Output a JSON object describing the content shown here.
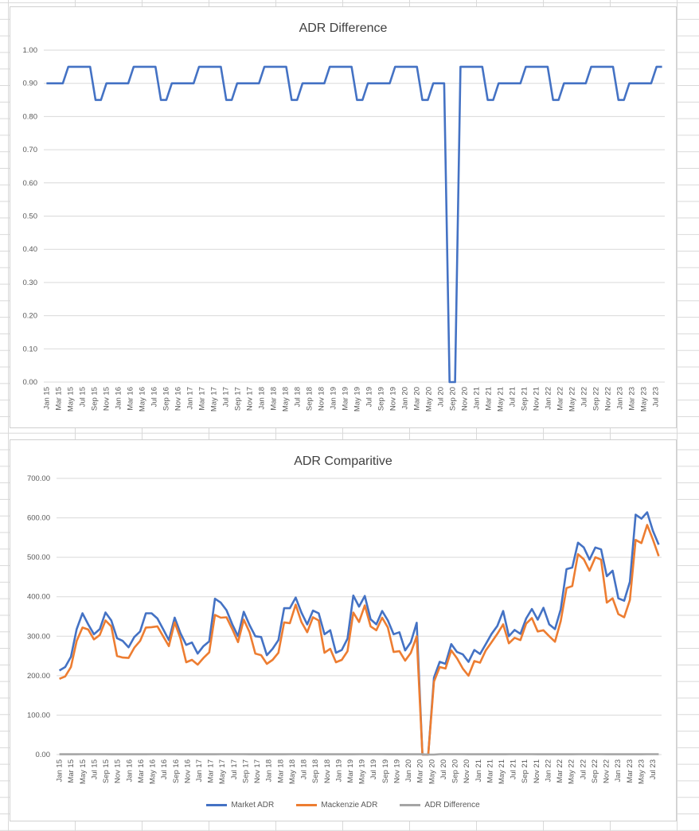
{
  "chart_data": [
    {
      "type": "line",
      "title": "ADR Difference",
      "xlabel": "",
      "ylabel": "",
      "ylim": [
        0,
        1
      ],
      "y_ticks": [
        "0.00",
        "0.10",
        "0.20",
        "0.30",
        "0.40",
        "0.50",
        "0.60",
        "0.70",
        "0.80",
        "0.90",
        "1.00"
      ],
      "grid": true,
      "x_tick_labels": [
        "Jan 15",
        "Mar 15",
        "May 15",
        "Jul 15",
        "Sep 15",
        "Nov 15",
        "Jan 16",
        "Mar 16",
        "May 16",
        "Jul 16",
        "Sep 16",
        "Nov 16",
        "Jan 17",
        "Mar 17",
        "May 17",
        "Jul 17",
        "Sep 17",
        "Nov 17",
        "Jan 18",
        "Mar 18",
        "May 18",
        "Jul 18",
        "Sep 18",
        "Nov 18",
        "Jan 19",
        "Mar 19",
        "May 19",
        "Jul 19",
        "Sep 19",
        "Nov 19",
        "Jan 20",
        "Mar 20",
        "May 20",
        "Jul 20",
        "Sep 20",
        "Nov 20",
        "Jan 21",
        "Mar 21",
        "May 21",
        "Jul 21",
        "Sep 21",
        "Nov 21",
        "Jan 22",
        "Mar 22",
        "May 22",
        "Jul 22",
        "Sep 22",
        "Nov 22",
        "Jan 23",
        "Mar 23",
        "May 23",
        "Jul 23"
      ],
      "series": [
        {
          "color": "#4472c4",
          "values": [
            0.9,
            0.9,
            0.9,
            0.9,
            0.95,
            0.95,
            0.95,
            0.95,
            0.95,
            0.85,
            0.85,
            0.9,
            0.9,
            0.9,
            0.9,
            0.9,
            0.95,
            0.95,
            0.95,
            0.95,
            0.95,
            0.85,
            0.85,
            0.9,
            0.9,
            0.9,
            0.9,
            0.9,
            0.95,
            0.95,
            0.95,
            0.95,
            0.95,
            0.85,
            0.85,
            0.9,
            0.9,
            0.9,
            0.9,
            0.9,
            0.95,
            0.95,
            0.95,
            0.95,
            0.95,
            0.85,
            0.85,
            0.9,
            0.9,
            0.9,
            0.9,
            0.9,
            0.95,
            0.95,
            0.95,
            0.95,
            0.95,
            0.85,
            0.85,
            0.9,
            0.9,
            0.9,
            0.9,
            0.9,
            0.95,
            0.95,
            0.95,
            0.95,
            0.95,
            0.85,
            0.85,
            0.9,
            0.9,
            0.9,
            0.0,
            0.0,
            0.95,
            0.95,
            0.95,
            0.95,
            0.95,
            0.85,
            0.85,
            0.9,
            0.9,
            0.9,
            0.9,
            0.9,
            0.95,
            0.95,
            0.95,
            0.95,
            0.95,
            0.85,
            0.85,
            0.9,
            0.9,
            0.9,
            0.9,
            0.9,
            0.95,
            0.95,
            0.95,
            0.95,
            0.95,
            0.85,
            0.85,
            0.9,
            0.9,
            0.9,
            0.9,
            0.9,
            0.95,
            0.95
          ]
        }
      ]
    },
    {
      "type": "line",
      "title": "ADR Comparitive",
      "xlabel": "",
      "ylabel": "",
      "ylim": [
        0,
        700
      ],
      "y_ticks": [
        "0.00",
        "100.00",
        "200.00",
        "300.00",
        "400.00",
        "500.00",
        "600.00",
        "700.00"
      ],
      "grid": true,
      "legend_position": "bottom",
      "x_tick_labels": [
        "Jan 15",
        "Mar 15",
        "May 15",
        "Jul 15",
        "Sep 15",
        "Nov 15",
        "Jan 16",
        "Mar 16",
        "May 16",
        "Jul 16",
        "Sep 16",
        "Nov 16",
        "Jan 17",
        "Mar 17",
        "May 17",
        "Jul 17",
        "Sep 17",
        "Nov 17",
        "Jan 18",
        "Mar 18",
        "May 18",
        "Jul 18",
        "Sep 18",
        "Nov 18",
        "Jan 19",
        "Mar 19",
        "May 19",
        "Jul 19",
        "Sep 19",
        "Nov 19",
        "Jan 20",
        "Mar 20",
        "May 20",
        "Jul 20",
        "Sep 20",
        "Nov 20",
        "Jan 21",
        "Mar 21",
        "May 21",
        "Jul 21",
        "Sep 21",
        "Nov 21",
        "Jan 22",
        "Mar 22",
        "May 22",
        "Jul 22",
        "Sep 22",
        "Nov 22",
        "Jan 23",
        "Mar 23",
        "May 23",
        "Jul 23"
      ],
      "series": [
        {
          "name": "Market ADR",
          "color": "#4472c4",
          "values": [
            213,
            222,
            248,
            318,
            358,
            330,
            305,
            318,
            360,
            340,
            295,
            288,
            272,
            298,
            312,
            358,
            358,
            345,
            318,
            290,
            347,
            308,
            278,
            284,
            256,
            275,
            287,
            395,
            385,
            366,
            330,
            300,
            362,
            328,
            300,
            298,
            252,
            268,
            290,
            371,
            371,
            398,
            360,
            330,
            365,
            358,
            305,
            315,
            258,
            265,
            294,
            403,
            375,
            402,
            343,
            330,
            364,
            340,
            305,
            310,
            264,
            285,
            334,
            0,
            0,
            195,
            235,
            230,
            280,
            260,
            254,
            235,
            265,
            255,
            280,
            306,
            326,
            364,
            300,
            316,
            306,
            345,
            369,
            342,
            372,
            330,
            318,
            368,
            470,
            474,
            537,
            525,
            494,
            525,
            520,
            452,
            466,
            396,
            390,
            438,
            608,
            598,
            614,
            567,
            532
          ]
        },
        {
          "name": "Mackenzie ADR",
          "color": "#ed7d31",
          "values": [
            192,
            198,
            222,
            288,
            322,
            317,
            292,
            303,
            340,
            325,
            250,
            246,
            245,
            271,
            288,
            322,
            323,
            325,
            300,
            275,
            335,
            295,
            234,
            240,
            228,
            245,
            259,
            354,
            347,
            348,
            318,
            285,
            342,
            310,
            256,
            252,
            230,
            240,
            258,
            335,
            333,
            380,
            336,
            310,
            348,
            340,
            258,
            268,
            234,
            240,
            262,
            360,
            336,
            378,
            325,
            315,
            347,
            322,
            260,
            262,
            238,
            258,
            300,
            0,
            0,
            185,
            222,
            218,
            264,
            244,
            218,
            200,
            237,
            233,
            264,
            285,
            306,
            330,
            282,
            296,
            290,
            332,
            346,
            312,
            315,
            300,
            286,
            338,
            422,
            427,
            508,
            495,
            466,
            500,
            494,
            385,
            396,
            356,
            348,
            392,
            544,
            536,
            582,
            545,
            503
          ]
        },
        {
          "name": "ADR Difference",
          "color": "#a5a5a5",
          "values": [
            0.9,
            0.9,
            0.9,
            0.9,
            0.95,
            0.95,
            0.95,
            0.95,
            0.95,
            0.85,
            0.85,
            0.9,
            0.9,
            0.9,
            0.9,
            0.9,
            0.95,
            0.95,
            0.95,
            0.95,
            0.95,
            0.85,
            0.85,
            0.9,
            0.9,
            0.9,
            0.9,
            0.9,
            0.95,
            0.95,
            0.95,
            0.95,
            0.95,
            0.85,
            0.85,
            0.9,
            0.9,
            0.9,
            0.9,
            0.9,
            0.95,
            0.95,
            0.95,
            0.95,
            0.95,
            0.85,
            0.85,
            0.9,
            0.9,
            0.9,
            0.9,
            0.9,
            0.95,
            0.95,
            0.95,
            0.95,
            0.95,
            0.85,
            0.85,
            0.9,
            0.9,
            0.9,
            0.9,
            0.9,
            0,
            0,
            0.95,
            0.95,
            0.95,
            0.95,
            0.95,
            0.85,
            0.85,
            0.9,
            0.9,
            0.9,
            0.9,
            0.9,
            0.95,
            0.95,
            0.95,
            0.95,
            0.95,
            0.85,
            0.85,
            0.9,
            0.9,
            0.9,
            0.9,
            0.9,
            0.95,
            0.95,
            0.95,
            0.95,
            0.95,
            0.85,
            0.85,
            0.9,
            0.9,
            0.9,
            0.9,
            0.9,
            0.95,
            0.95,
            0.95
          ]
        }
      ]
    }
  ]
}
